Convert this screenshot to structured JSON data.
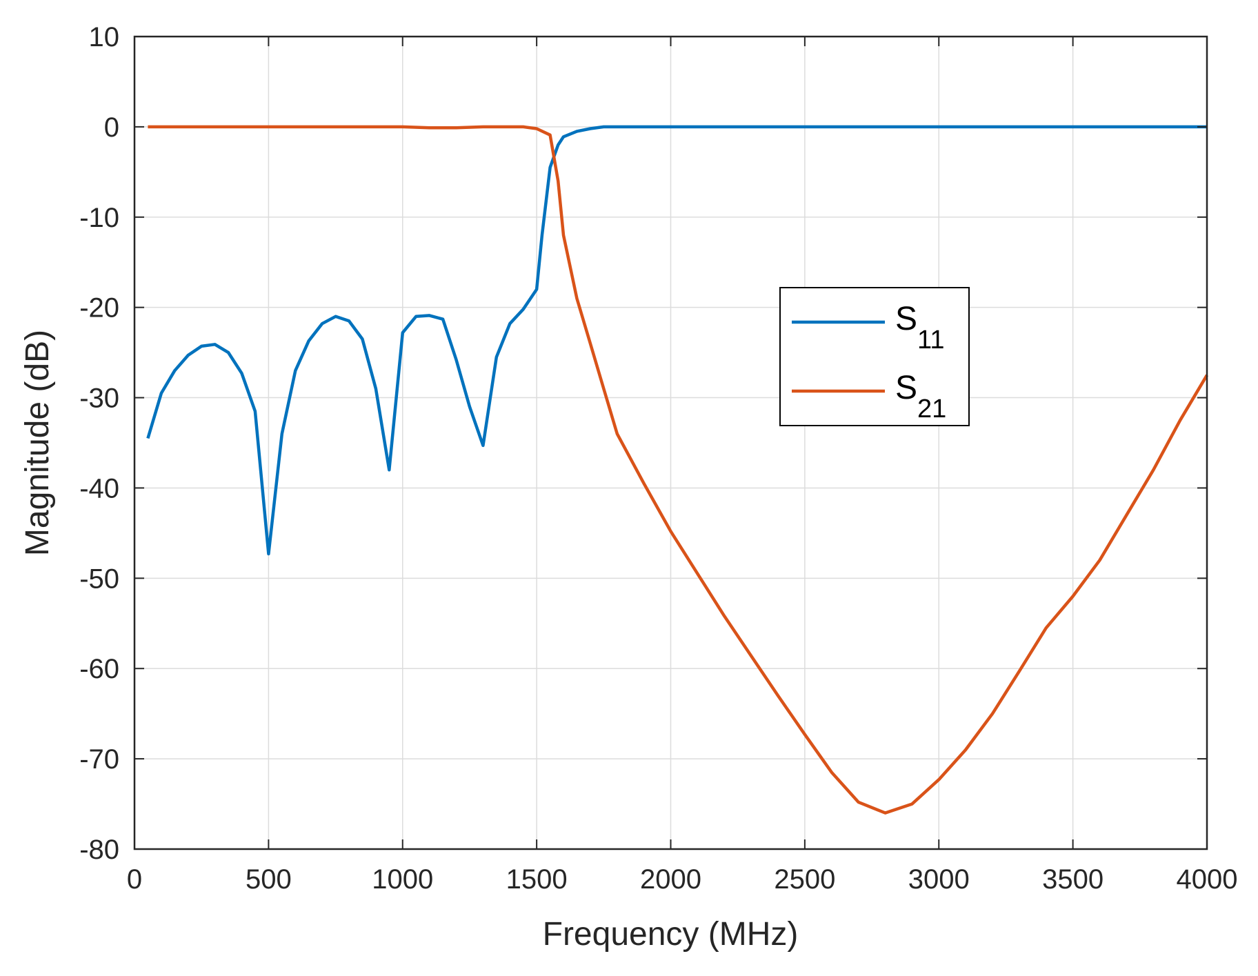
{
  "chart_data": {
    "type": "line",
    "title": "",
    "xlabel": "Frequency (MHz)",
    "ylabel": "Magnitude (dB)",
    "xlim": [
      0,
      4000
    ],
    "ylim": [
      -80,
      10
    ],
    "xticks": [
      0,
      500,
      1000,
      1500,
      2000,
      2500,
      3000,
      3500,
      4000
    ],
    "yticks": [
      10,
      0,
      -10,
      -20,
      -30,
      -40,
      -50,
      -60,
      -70,
      -80
    ],
    "grid": true,
    "legend_position": "right-center",
    "series": [
      {
        "name": "S11",
        "label_base": "S",
        "label_sub": "11",
        "color": "#0072BD",
        "points": [
          [
            50,
            -34.5
          ],
          [
            100,
            -29.5
          ],
          [
            150,
            -27
          ],
          [
            200,
            -25.3
          ],
          [
            250,
            -24.3
          ],
          [
            300,
            -24.1
          ],
          [
            350,
            -25
          ],
          [
            400,
            -27.3
          ],
          [
            450,
            -31.5
          ],
          [
            500,
            -47.3
          ],
          [
            550,
            -34
          ],
          [
            600,
            -27
          ],
          [
            650,
            -23.7
          ],
          [
            700,
            -21.8
          ],
          [
            750,
            -21
          ],
          [
            800,
            -21.5
          ],
          [
            850,
            -23.5
          ],
          [
            900,
            -29
          ],
          [
            950,
            -38
          ],
          [
            1000,
            -22.8
          ],
          [
            1050,
            -21
          ],
          [
            1100,
            -20.9
          ],
          [
            1150,
            -21.3
          ],
          [
            1200,
            -25.8
          ],
          [
            1250,
            -31
          ],
          [
            1300,
            -35.3
          ],
          [
            1350,
            -25.5
          ],
          [
            1400,
            -21.8
          ],
          [
            1450,
            -20.2
          ],
          [
            1500,
            -18
          ],
          [
            1520,
            -12
          ],
          [
            1550,
            -4.5
          ],
          [
            1580,
            -2
          ],
          [
            1600,
            -1.1
          ],
          [
            1650,
            -0.5
          ],
          [
            1700,
            -0.2
          ],
          [
            1750,
            0
          ],
          [
            2000,
            0
          ],
          [
            2500,
            0
          ],
          [
            3000,
            0
          ],
          [
            3500,
            0
          ],
          [
            4000,
            0
          ]
        ]
      },
      {
        "name": "S21",
        "label_base": "S",
        "label_sub": "21",
        "color": "#D95319",
        "points": [
          [
            50,
            0
          ],
          [
            500,
            0
          ],
          [
            1000,
            0
          ],
          [
            1100,
            -0.1
          ],
          [
            1200,
            -0.1
          ],
          [
            1300,
            0
          ],
          [
            1400,
            0
          ],
          [
            1450,
            0
          ],
          [
            1500,
            -0.2
          ],
          [
            1550,
            -0.9
          ],
          [
            1580,
            -6
          ],
          [
            1600,
            -12
          ],
          [
            1650,
            -19
          ],
          [
            1700,
            -24
          ],
          [
            1750,
            -29
          ],
          [
            1800,
            -34
          ],
          [
            1900,
            -39.5
          ],
          [
            2000,
            -44.8
          ],
          [
            2100,
            -49.5
          ],
          [
            2200,
            -54.2
          ],
          [
            2300,
            -58.6
          ],
          [
            2400,
            -63
          ],
          [
            2500,
            -67.3
          ],
          [
            2600,
            -71.5
          ],
          [
            2700,
            -74.8
          ],
          [
            2800,
            -76
          ],
          [
            2900,
            -75
          ],
          [
            3000,
            -72.3
          ],
          [
            3100,
            -69
          ],
          [
            3200,
            -65
          ],
          [
            3300,
            -60.3
          ],
          [
            3400,
            -55.5
          ],
          [
            3500,
            -52
          ],
          [
            3600,
            -48
          ],
          [
            3700,
            -43
          ],
          [
            3800,
            -38
          ],
          [
            3900,
            -32.5
          ],
          [
            4000,
            -27.5
          ]
        ]
      }
    ]
  }
}
